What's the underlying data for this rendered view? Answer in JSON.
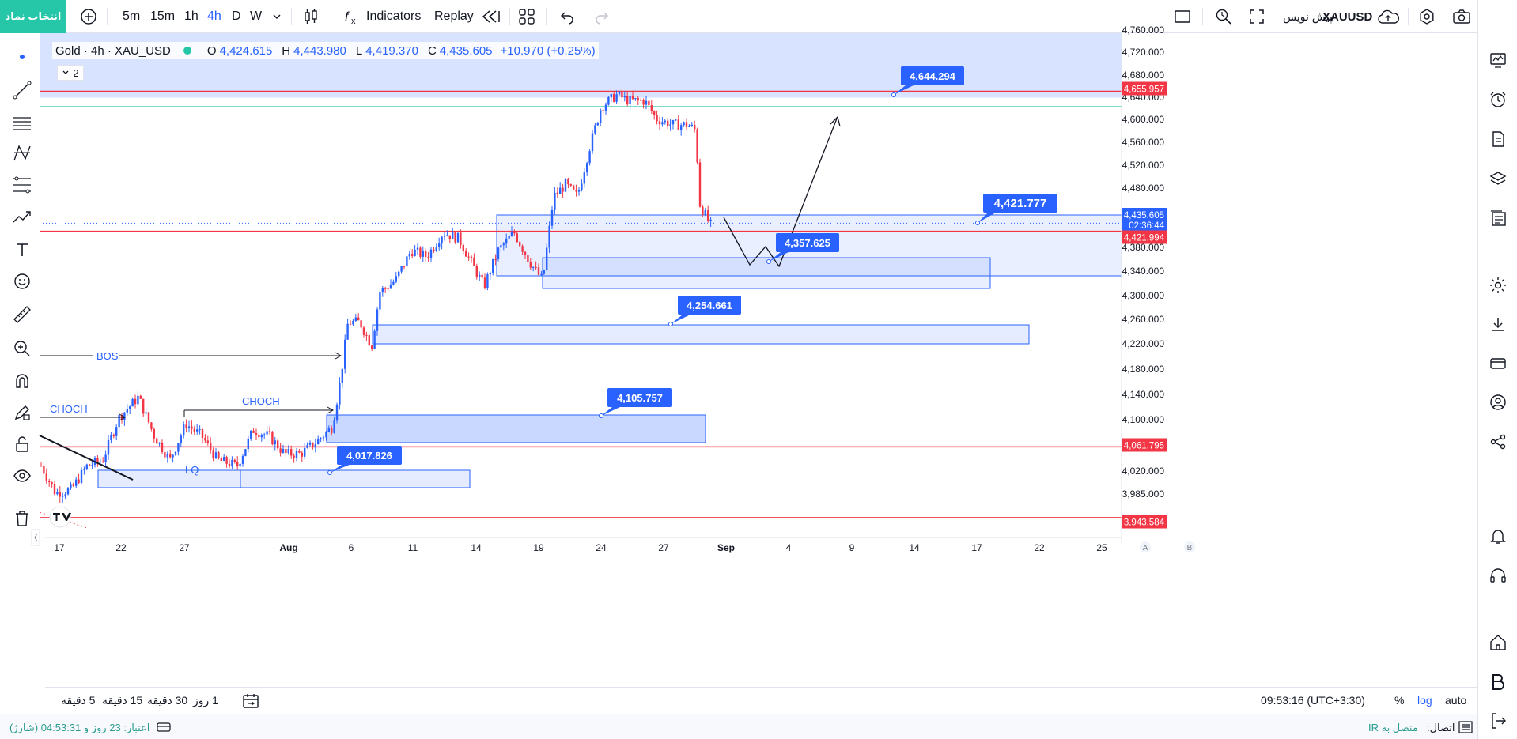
{
  "topbar": {
    "symbol_search": "انتخاب نماد",
    "intervals": [
      "5m",
      "15m",
      "1h",
      "4h",
      "D",
      "W"
    ],
    "active_interval": "4h",
    "indicators_label": "Indicators",
    "replay_label": "Replay",
    "symbol_name": "XAUUSD",
    "publish_label": "پیش نویس"
  },
  "legend": {
    "title": "Gold · 4h · XAU_USD",
    "open_key": "O",
    "open": "4,424.615",
    "high_key": "H",
    "high": "4,443.980",
    "low_key": "L",
    "low": "4,419.370",
    "close_key": "C",
    "close": "4,435.605",
    "change": "+10.970 (+0.25%)",
    "collapsed_count": "2"
  },
  "price_axis": {
    "ticks": [
      "4,760.000",
      "4,720.000",
      "4,680.000",
      "4,640.000",
      "4,600.000",
      "4,560.000",
      "4,520.000",
      "4,480.000",
      "4,435.605",
      "4,380.000",
      "4,340.000",
      "4,300.000",
      "4,260.000",
      "4,220.000",
      "4,180.000",
      "4,140.000",
      "4,100.000",
      "4,061.795",
      "4,020.000",
      "3,985.000",
      "3,943.584"
    ],
    "price_labels": {
      "level_top": "4,655.957",
      "current": "4,435.605",
      "countdown": "02:36:44",
      "level_mid": "4,421.994",
      "level_low": "4,061.795",
      "level_bottom": "3,943.584"
    },
    "colors": {
      "red": "#f23645",
      "blue": "#2962ff",
      "teal": "#26c6a8"
    }
  },
  "time_axis": {
    "ticks": [
      "17",
      "22",
      "27",
      "Aug",
      "6",
      "11",
      "14",
      "19",
      "24",
      "27",
      "Sep",
      "4",
      "9",
      "14",
      "17",
      "22",
      "25"
    ],
    "scale_buttons": [
      "A",
      "B"
    ]
  },
  "annotations": {
    "callouts": [
      "4,644.294",
      "4,421.777",
      "4,357.625",
      "4,254.661",
      "4,105.757",
      "4,017.826"
    ],
    "labels": {
      "bos": "BOS",
      "choch_left": "CHOCH",
      "choch_right": "CHOCH",
      "lq": "LQ"
    }
  },
  "bottombar": {
    "ranges": [
      "5 دقیقه",
      "15 دقیقه",
      "30 دقیقه",
      "1 روز"
    ],
    "clock": "09:53:16 (UTC+3:30)",
    "percent": "%",
    "log": "log",
    "auto": "auto"
  },
  "statusbar": {
    "account": "اعتبار: 23 روز و 04:53:31 (شارژ)",
    "connection_label": "اتصال:",
    "connection_value": "متصل به IR"
  },
  "chart_data": {
    "type": "candlestick",
    "title": "Gold · 4h · XAU_USD",
    "ylim": [
      3930,
      4770
    ],
    "x_ticks": [
      "17",
      "22",
      "27",
      "Aug",
      "6",
      "11",
      "14",
      "19",
      "24",
      "27",
      "Sep",
      "4",
      "9",
      "14",
      "17",
      "22",
      "25"
    ],
    "horizontal_levels": [
      4655.957,
      4421.994,
      4061.795,
      3943.584
    ],
    "zones": [
      {
        "label": "4,421.777",
        "top": 4435.6,
        "bottom": 4340
      },
      {
        "label": "4,357.625",
        "top": 4360,
        "bottom": 4318
      },
      {
        "label": "4,254.661",
        "top": 4250,
        "bottom": 4220
      },
      {
        "label": "4,105.757",
        "top": 4108,
        "bottom": 4063
      },
      {
        "label": "4,017.826",
        "top": 4020,
        "bottom": 3993
      }
    ],
    "last_price": 4435.605,
    "grid": false
  }
}
